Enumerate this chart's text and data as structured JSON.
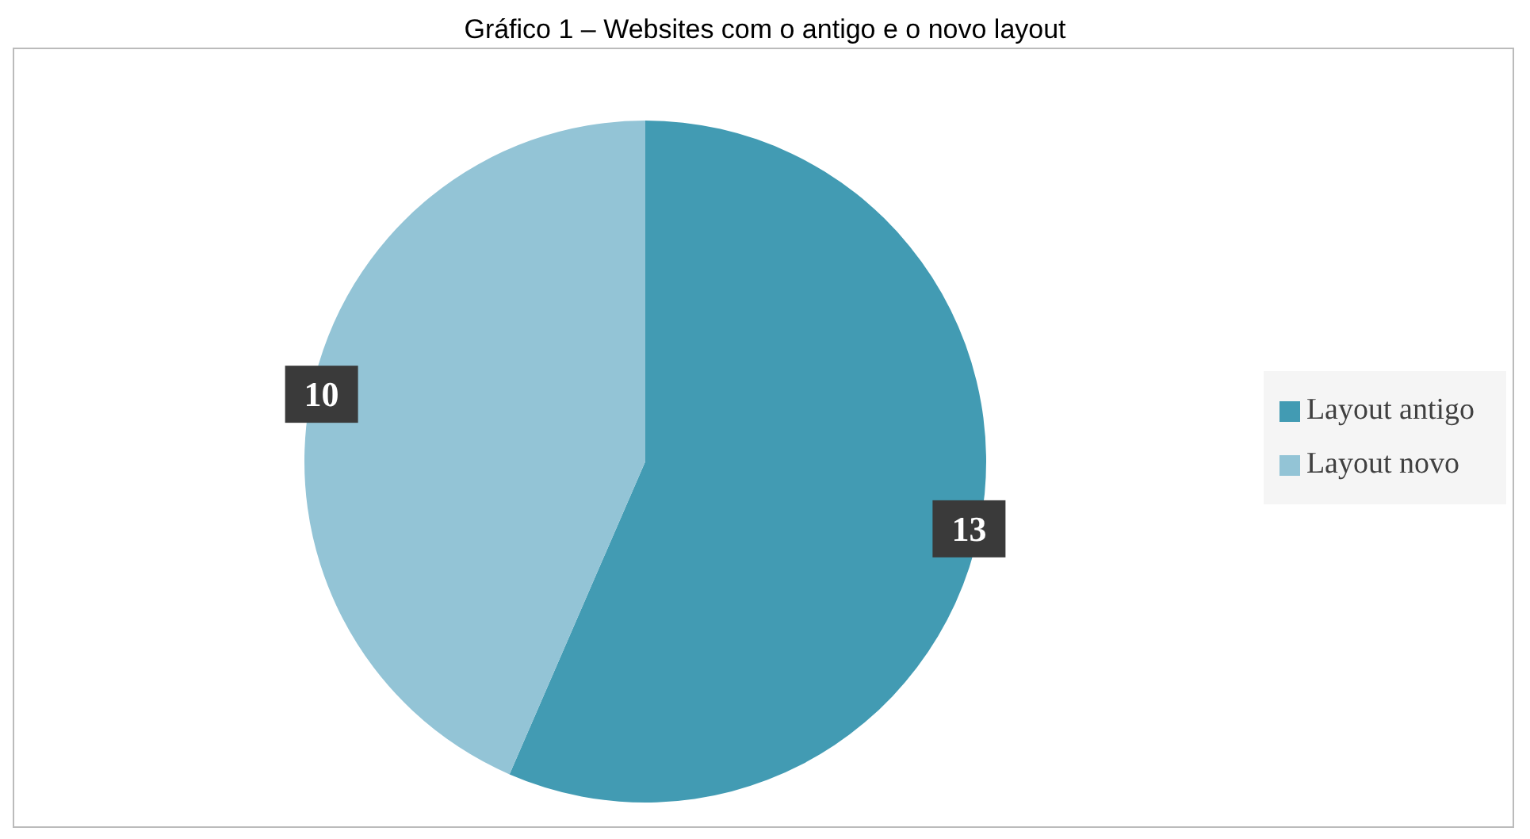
{
  "chart_data": {
    "type": "pie",
    "title": "Gráfico 1 – Websites com o antigo e o novo layout",
    "categories": [
      "Layout antigo",
      "Layout novo"
    ],
    "values": [
      13,
      10
    ],
    "colors": [
      "#429bb3",
      "#93c4d6"
    ],
    "data_labels": true,
    "legend": "right"
  }
}
